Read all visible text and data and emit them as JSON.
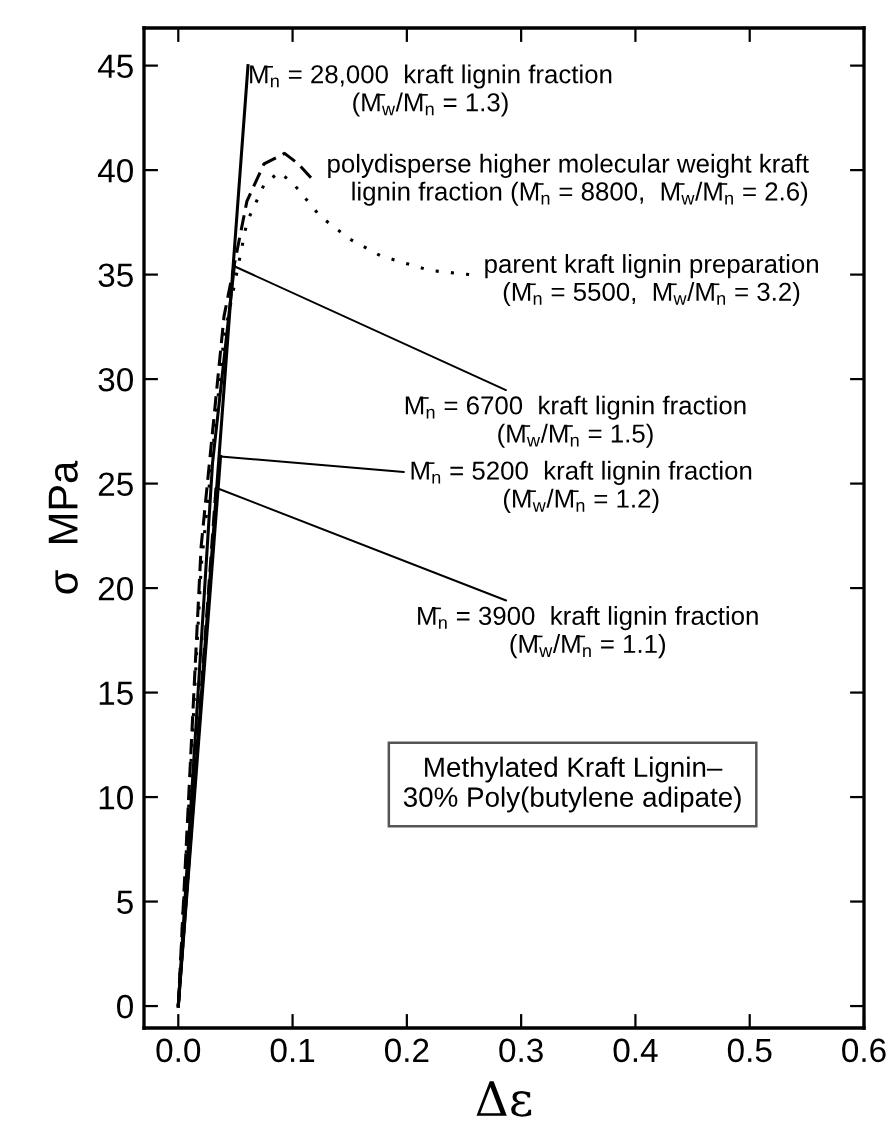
{
  "chart_data": {
    "type": "line",
    "xlabel": "Δε",
    "ylabel": "σ  MPa",
    "xlim": [
      -0.03,
      0.6
    ],
    "ylim": [
      -1.05,
      46.8
    ],
    "xticks": [
      {
        "value": 0,
        "label": "0.0"
      },
      0.1,
      0.2,
      0.3,
      0.4,
      0.5,
      0.6
    ],
    "yticks": [
      0,
      5,
      10,
      15,
      20,
      25,
      30,
      35,
      40,
      45
    ],
    "grid": false,
    "marker": "none",
    "series": [
      {
        "color": "#000000",
        "line_style": "solid",
        "x": [
          0,
          0.061
        ],
        "values": [
          0,
          45
        ]
      },
      {
        "color": "#000000",
        "line_style": "dashed",
        "x": [
          0,
          0.02,
          0.04,
          0.06,
          0.075,
          0.093,
          0.105,
          0.12
        ],
        "values": [
          0,
          22,
          33,
          38.5,
          40.3,
          40.8,
          40.3,
          39.4
        ]
      },
      {
        "color": "#000000",
        "line_style": "dotted",
        "x": [
          0,
          0.02,
          0.04,
          0.06,
          0.075,
          0.088,
          0.1,
          0.124,
          0.15,
          0.177,
          0.22,
          0.255
        ],
        "values": [
          0,
          21,
          32,
          37.5,
          39.3,
          39.9,
          39.4,
          37.8,
          36.7,
          35.9,
          35.2,
          35.0
        ]
      },
      {
        "color": "#000000",
        "line_style": "solid",
        "x": [
          0,
          0.03,
          0.049
        ],
        "values": [
          0,
          26,
          35.4
        ]
      },
      {
        "color": "#000000",
        "line_style": "solid",
        "x": [
          0,
          0.037
        ],
        "values": [
          0,
          26.3
        ]
      },
      {
        "color": "#000000",
        "line_style": "dashed",
        "x": [
          0,
          0.033
        ],
        "values": [
          0,
          24.8
        ]
      }
    ],
    "annotations": [
      {
        "text": "M̄$_{n}$ = 28,000  kraft lignin fraction\n(M̄$_{w}$/M̄$_{n}$ = 1.3)",
        "x": 0.061,
        "y": 45
      },
      {
        "text": "polydisperse higher molecular weight kraft\nlignin fraction (M̄$_{n}$ = 8800,  M̄$_{w}$/M̄$_{n}$ = 2.6)",
        "x": 0.12,
        "y": 39.4
      },
      {
        "text": "parent kraft lignin preparation\n(M̄$_{n}$ = 5500,  M̄$_{w}$/M̄$_{n}$ = 3.2)",
        "x": 0.255,
        "y": 35.0
      },
      {
        "text": "M̄$_{n}$ = 6700  kraft lignin fraction\n(M̄$_{w}$/M̄$_{n}$ = 1.5)",
        "x": 0.049,
        "y": 35.4
      },
      {
        "text": "M̄$_{n}$ = 5200  kraft lignin fraction\n(M̄$_{w}$/M̄$_{n}$ = 1.2)",
        "x": 0.037,
        "y": 26.3
      },
      {
        "text": "M̄$_{n}$ = 3900  kraft lignin fraction\n(M̄$_{w}$/M̄$_{n}$ = 1.1)",
        "x": 0.033,
        "y": 24.8
      },
      "Methylated Kraft Lignin–\n30% Poly(butylene adipate)"
    ]
  }
}
